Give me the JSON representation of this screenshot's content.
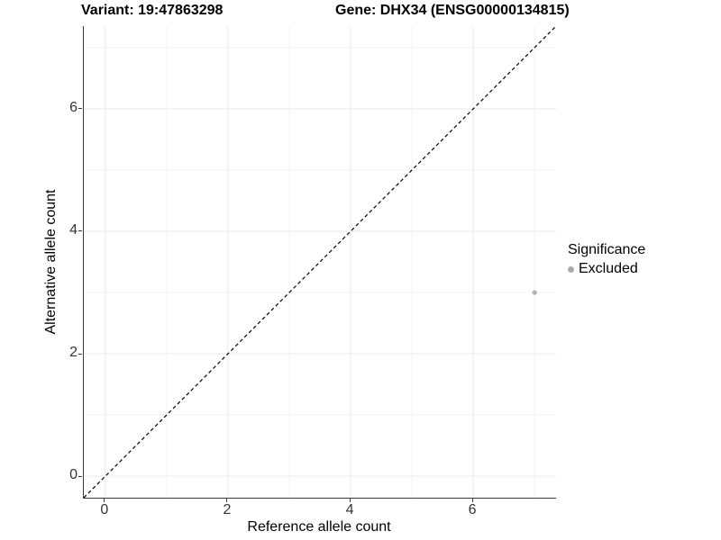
{
  "figure": {
    "title_left": "Variant: 19:47863298",
    "title_right": "Gene: DHX34 (ENSG00000134815)"
  },
  "chart_data": {
    "type": "scatter",
    "title": "Variant: 19:47863298 — Gene: DHX34 (ENSG00000134815)",
    "xlabel": "Reference allele count",
    "ylabel": "Alternative allele count",
    "xlim": [
      -0.35,
      7.35
    ],
    "ylim": [
      -0.35,
      7.35
    ],
    "xticks": [
      0,
      2,
      4,
      6
    ],
    "yticks": [
      0,
      2,
      4,
      6
    ],
    "grid": {
      "on": true,
      "major": [
        0,
        2,
        4,
        6
      ],
      "minor": [
        1,
        3,
        5,
        7
      ]
    },
    "identity_line": {
      "equation": "y = x",
      "style": "dashed",
      "color": "#000000",
      "from": [
        -0.35,
        -0.35
      ],
      "to": [
        7.35,
        7.35
      ]
    },
    "series": [
      {
        "name": "Excluded",
        "color": "#b3b3b3",
        "points": [
          {
            "x": 7,
            "y": 3
          }
        ]
      }
    ],
    "legend": {
      "title": "Significance",
      "position": "right",
      "entries": [
        {
          "label": "Excluded",
          "color": "#ababab"
        }
      ]
    }
  },
  "colors": {
    "grid_major": "#e9e9e9",
    "grid_minor": "#f3f3f3",
    "axis_line": "#3a3a3a",
    "tick_text": "#333333",
    "point": "#b3b3b3",
    "background": "#ffffff"
  }
}
